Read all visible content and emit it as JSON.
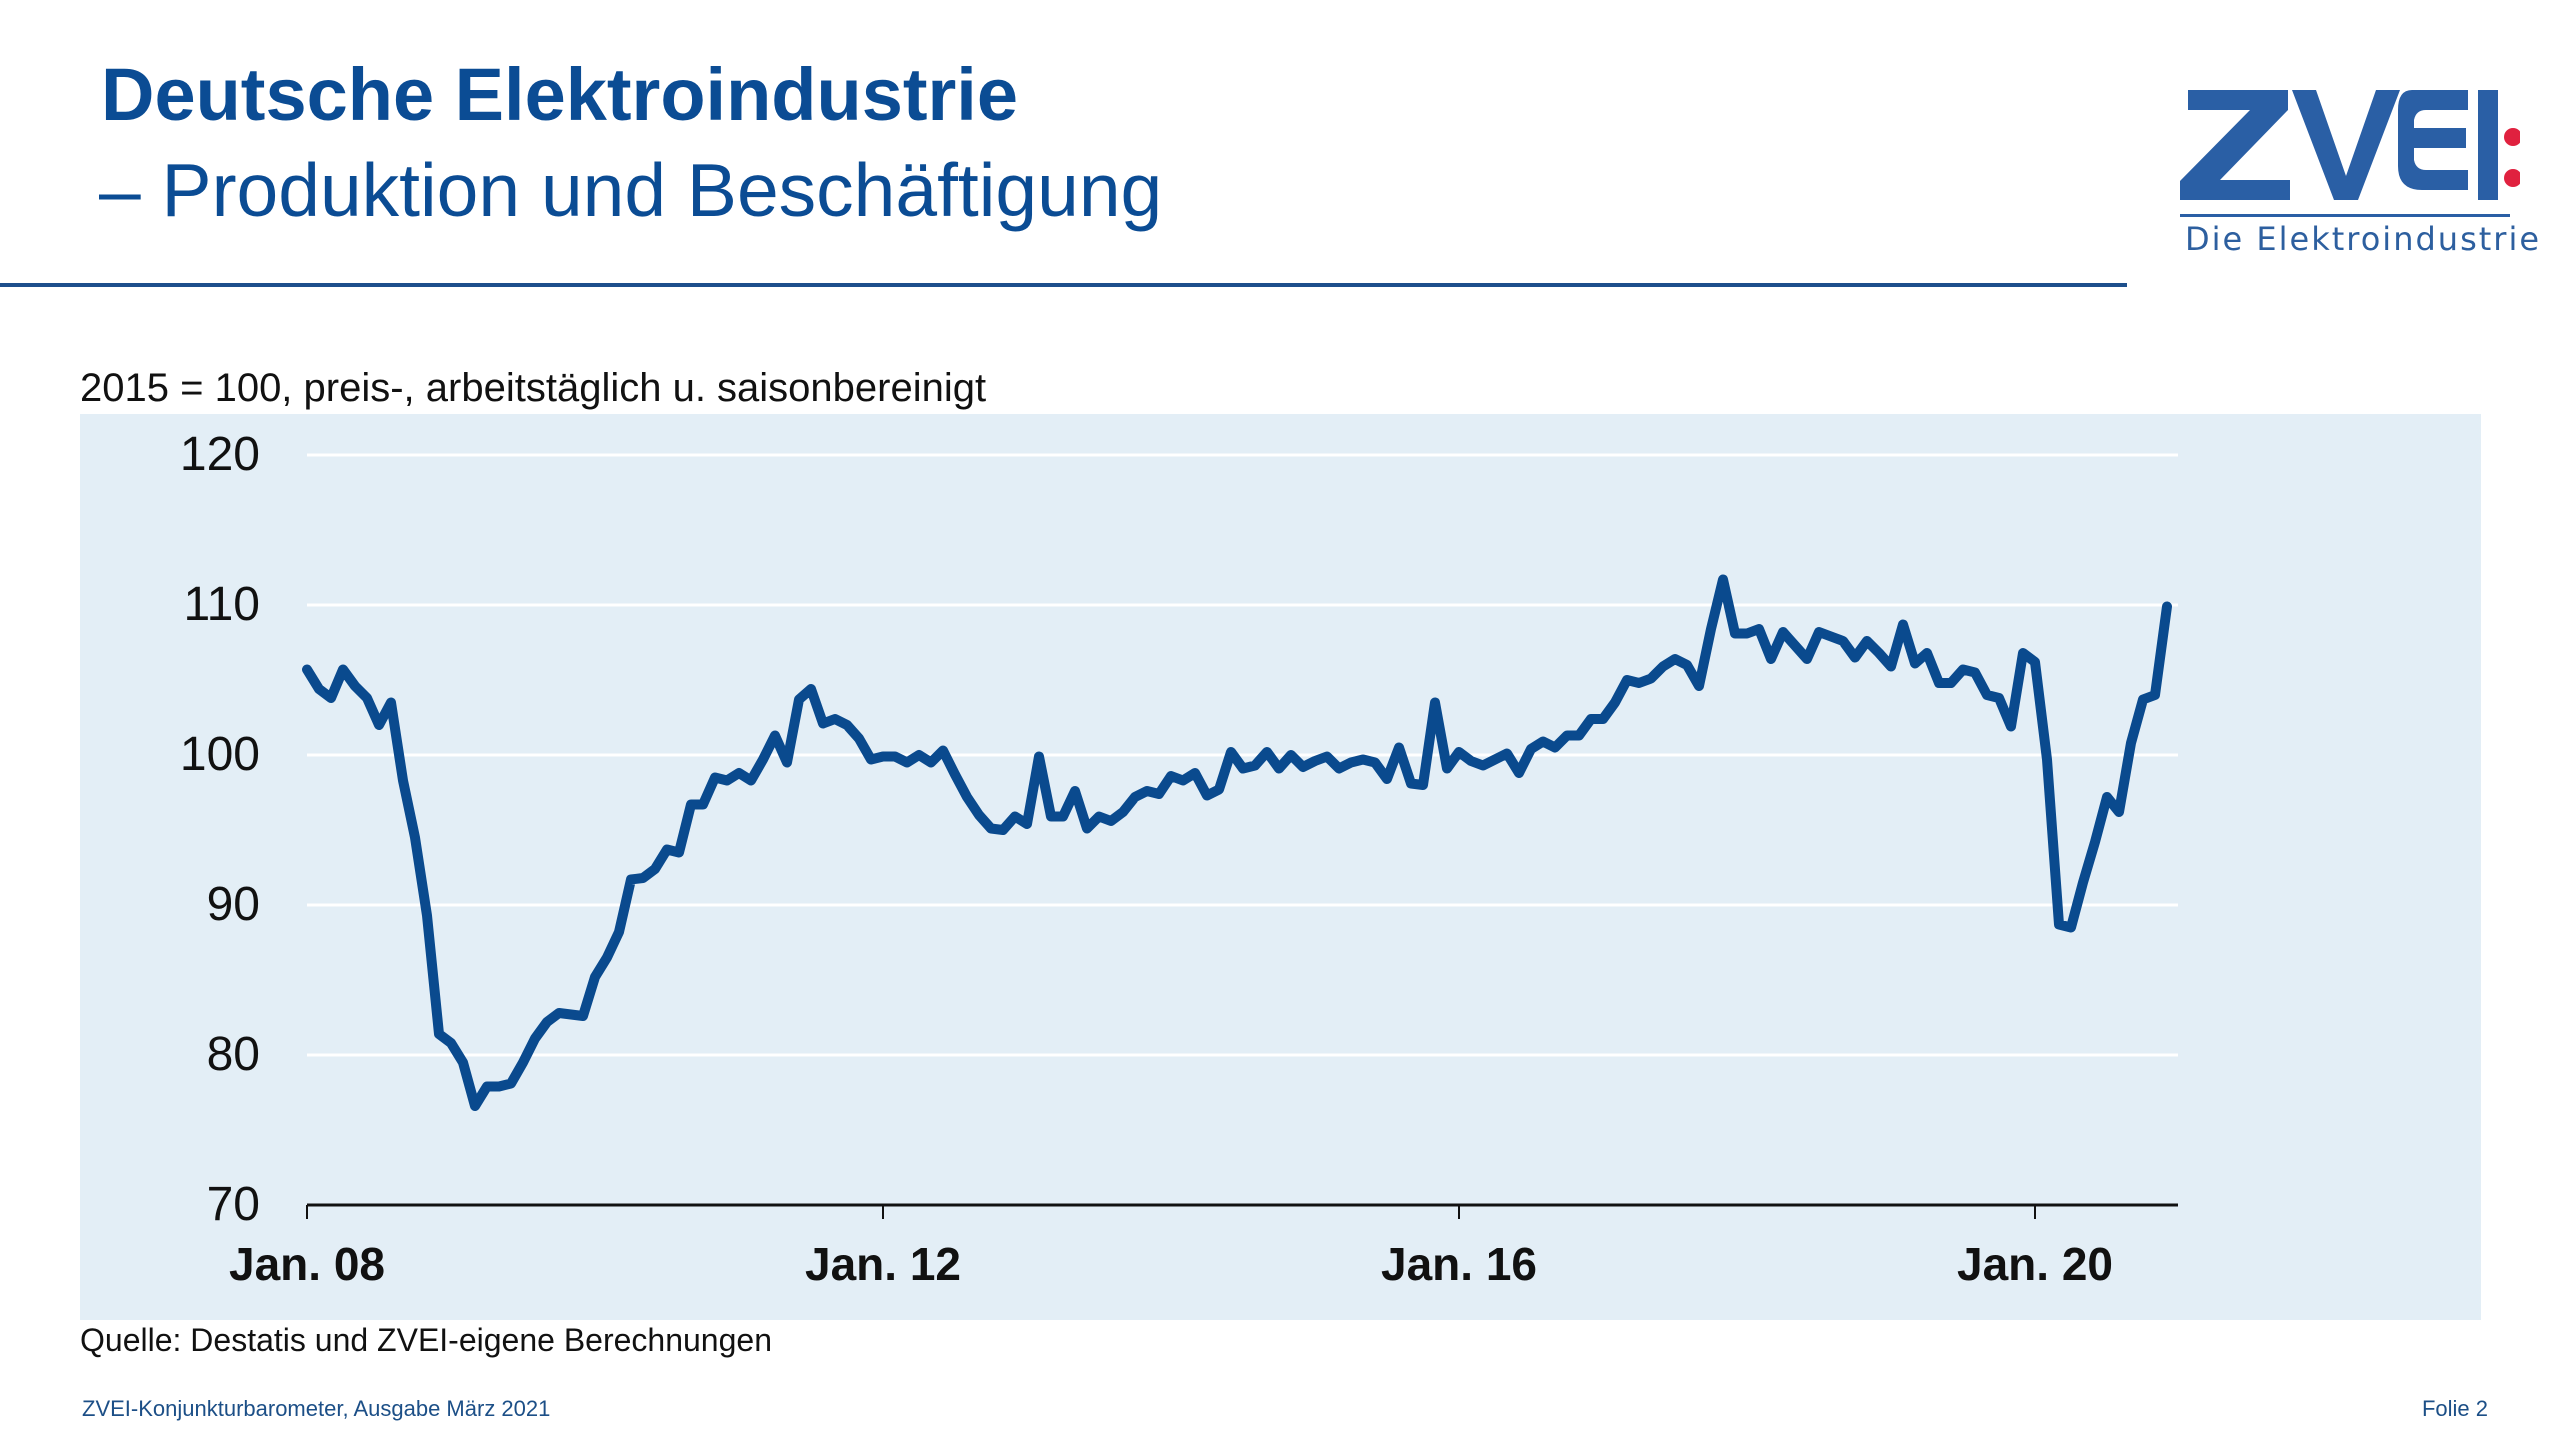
{
  "slide": {
    "title": "Deutsche Elektroindustrie",
    "subtitle": "– Produktion und Beschäftigung",
    "logo": {
      "wordmark": "ZVEI",
      "tagline": "Die Elektroindustrie",
      "primary_color": "#2a5fa5",
      "accent_color": "#e0213f"
    },
    "note": "2015 = 100, preis-, arbeitstäglich u. saisonbereinigt",
    "source": "Quelle: Destatis und ZVEI-eigene Berechnungen",
    "footer_left": "ZVEI-Konjunkturbarometer, Ausgabe März 2021",
    "footer_right": "Folie 2"
  },
  "colors": {
    "title": "#0b4c94",
    "line": "#0a4a8e",
    "panel_bg": "#e3eef6",
    "gridline": "#ffffff",
    "axis": "#111111"
  },
  "chart_data": {
    "type": "line",
    "title": "Deutsche Elektroindustrie – Produktion und Beschäftigung",
    "subtitle": "2015 = 100, preis-, arbeitstäglich u. saisonbereinigt",
    "xlabel": "",
    "ylabel": "",
    "ylim": [
      70,
      120
    ],
    "yticks": [
      70,
      80,
      90,
      100,
      110,
      120
    ],
    "ytick_labels": [
      "70",
      "80",
      "90",
      "100",
      "110",
      "120"
    ],
    "xtick_labels": [
      "Jan. 08",
      "Jan. 12",
      "Jan. 16",
      "Jan. 20"
    ],
    "xtick_month_index": [
      0,
      48,
      96,
      144
    ],
    "x_start": "Jan. 2008",
    "x_frequency": "monthly",
    "grid": true,
    "legend": null,
    "series": [
      {
        "name": "Produktion",
        "values": [
          105.7,
          104.4,
          103.8,
          105.7,
          104.6,
          103.8,
          102.0,
          103.5,
          98.3,
          94.5,
          89.3,
          81.4,
          80.8,
          79.5,
          76.6,
          77.9,
          77.9,
          78.1,
          79.5,
          81.1,
          82.2,
          82.8,
          82.7,
          82.6,
          85.2,
          86.5,
          88.2,
          91.7,
          91.8,
          92.4,
          93.7,
          93.5,
          96.7,
          96.7,
          98.5,
          98.3,
          98.8,
          98.3,
          99.7,
          101.3,
          99.5,
          103.7,
          104.4,
          102.1,
          102.4,
          102.0,
          101.1,
          99.7,
          99.9,
          99.9,
          99.5,
          100.0,
          99.5,
          100.3,
          98.7,
          97.2,
          96.0,
          95.1,
          95.0,
          95.9,
          95.4,
          99.9,
          95.9,
          95.9,
          97.6,
          95.1,
          95.9,
          95.6,
          96.2,
          97.2,
          97.6,
          97.4,
          98.6,
          98.3,
          98.8,
          97.3,
          97.7,
          100.2,
          99.1,
          99.3,
          100.2,
          99.1,
          100.0,
          99.2,
          99.6,
          99.9,
          99.1,
          99.5,
          99.7,
          99.5,
          98.4,
          100.5,
          98.1,
          98.0,
          103.5,
          99.1,
          100.2,
          99.6,
          99.3,
          99.7,
          100.1,
          98.8,
          100.4,
          100.9,
          100.5,
          101.3,
          101.3,
          102.4,
          102.4,
          103.5,
          105.0,
          104.8,
          105.1,
          105.9,
          106.4,
          106.0,
          104.6,
          108.4,
          111.7,
          108.1,
          108.1,
          108.4,
          106.4,
          108.2,
          107.3,
          106.4,
          108.2,
          107.9,
          107.6,
          106.5,
          107.6,
          106.8,
          105.9,
          108.7,
          106.1,
          106.8,
          104.8,
          104.8,
          105.7,
          105.5,
          104.0,
          103.8,
          101.9,
          106.8,
          106.2,
          99.7,
          88.7,
          88.5,
          91.5,
          94.2,
          97.2,
          96.2,
          100.8,
          103.7,
          104.0,
          109.9
        ]
      }
    ]
  }
}
